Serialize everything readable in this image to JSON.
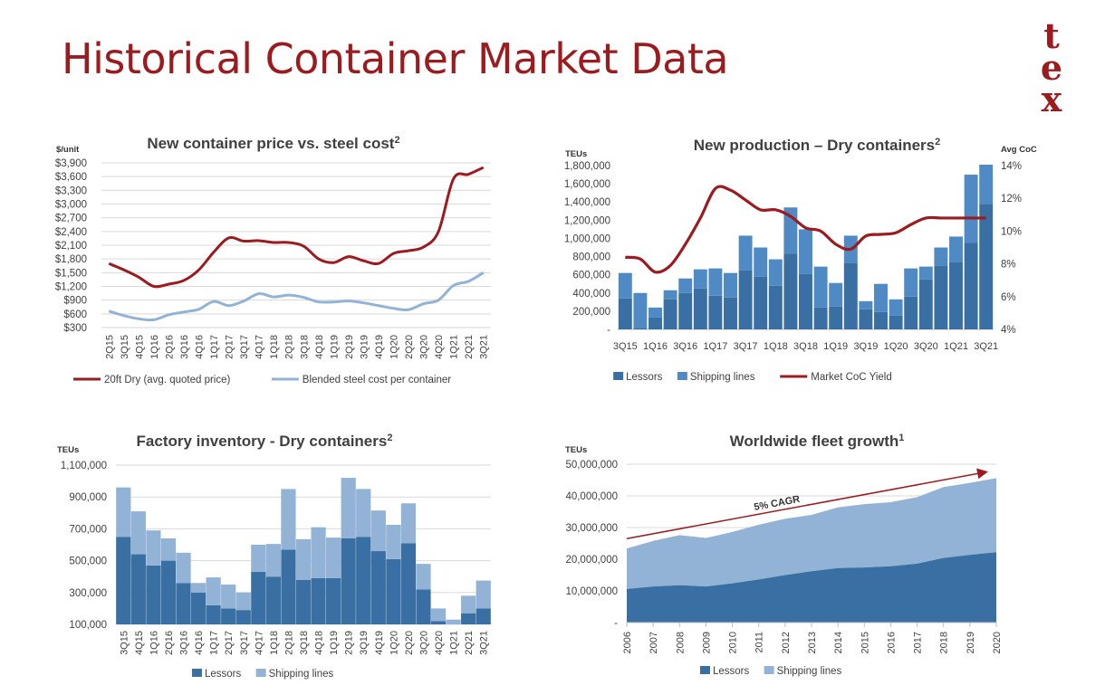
{
  "page": {
    "title": "Historical Container Market Data",
    "logo_letters": [
      "t",
      "e",
      "x"
    ],
    "colors": {
      "title": "#9b1b1f",
      "dark_blue": "#3a6fa3",
      "mid_blue": "#4f8ac4",
      "light_blue": "#93b3d6",
      "dark_red": "#9b1b1f"
    }
  },
  "chart_data": [
    {
      "id": "price",
      "type": "line",
      "title": "New container price vs. steel cost",
      "title_sup": "2",
      "ylabel": "$/unit",
      "ylim": [
        300,
        3900
      ],
      "yticks": [
        "$300",
        "$600",
        "$900",
        "$1,200",
        "$1,500",
        "$1,800",
        "$2,100",
        "$2,400",
        "$2,700",
        "$3,000",
        "$3,300",
        "$3,600",
        "$3,900"
      ],
      "categories": [
        "2Q15",
        "3Q15",
        "4Q15",
        "1Q16",
        "2Q16",
        "3Q16",
        "4Q16",
        "1Q17",
        "2Q17",
        "3Q17",
        "4Q17",
        "1Q18",
        "2Q18",
        "3Q18",
        "4Q18",
        "1Q19",
        "2Q19",
        "3Q19",
        "4Q19",
        "1Q20",
        "2Q20",
        "3Q20",
        "4Q20",
        "1Q21",
        "2Q21",
        "3Q21"
      ],
      "series": [
        {
          "name": "20ft Dry (avg. quoted price)",
          "color": "#9b1b1f",
          "values": [
            1700,
            1560,
            1400,
            1200,
            1250,
            1330,
            1560,
            1950,
            2260,
            2190,
            2200,
            2160,
            2160,
            2080,
            1800,
            1720,
            1850,
            1760,
            1700,
            1920,
            1980,
            2060,
            2400,
            3550,
            3650,
            3800
          ]
        },
        {
          "name": "Blended steel cost per container",
          "color": "#93b3d6",
          "values": [
            660,
            560,
            490,
            470,
            580,
            640,
            700,
            870,
            780,
            880,
            1040,
            970,
            1010,
            960,
            860,
            860,
            880,
            840,
            780,
            720,
            690,
            820,
            900,
            1220,
            1310,
            1500
          ]
        }
      ],
      "legend": "bottom",
      "grid": true
    },
    {
      "id": "production",
      "type": "bar",
      "stacked": true,
      "title": "New production – Dry containers",
      "title_sup": "2",
      "ylabel": "TEUs",
      "y2label": "Avg CoC",
      "ylim": [
        0,
        1800000
      ],
      "yticks": [
        "-",
        "200,000",
        "400,000",
        "600,000",
        "800,000",
        "1,000,000",
        "1,200,000",
        "1,400,000",
        "1,600,000",
        "1,800,000"
      ],
      "y2lim": [
        4,
        14
      ],
      "y2ticks": [
        "4%",
        "6%",
        "8%",
        "10%",
        "12%",
        "14%"
      ],
      "categories": [
        "3Q15",
        "4Q15",
        "1Q16",
        "2Q16",
        "3Q16",
        "4Q16",
        "1Q17",
        "2Q17",
        "3Q17",
        "4Q17",
        "1Q18",
        "2Q18",
        "3Q18",
        "4Q18",
        "1Q19",
        "2Q19",
        "3Q19",
        "4Q19",
        "1Q20",
        "2Q20",
        "3Q20",
        "4Q20",
        "1Q21",
        "2Q21",
        "3Q21"
      ],
      "xtick_labels": [
        "3Q15",
        "1Q16",
        "3Q16",
        "1Q17",
        "3Q17",
        "1Q18",
        "3Q18",
        "1Q19",
        "3Q19",
        "1Q20",
        "3Q20",
        "1Q21",
        "3Q21"
      ],
      "series": [
        {
          "name": "Lessors",
          "color": "#3a6fa3",
          "values": [
            340,
            10,
            130,
            330,
            400,
            450,
            370,
            350,
            650,
            580,
            480,
            830,
            610,
            240,
            250,
            730,
            220,
            190,
            150,
            360,
            550,
            700,
            740,
            950,
            1380
          ]
        },
        {
          "name": "Shipping lines",
          "color": "#4f8ac4",
          "values": [
            280,
            390,
            110,
            100,
            160,
            210,
            300,
            270,
            380,
            320,
            290,
            510,
            490,
            450,
            260,
            300,
            90,
            310,
            180,
            310,
            140,
            200,
            280,
            750,
            430
          ]
        }
      ],
      "series_units": "thousand TEUs",
      "line_series": {
        "name": "Market CoC Yield",
        "color": "#9b1b1f",
        "axis": "y2",
        "values": [
          8.4,
          8.3,
          7.5,
          7.9,
          9.2,
          10.8,
          12.6,
          12.5,
          11.9,
          11.3,
          11.3,
          10.9,
          10.2,
          10.0,
          9.2,
          8.9,
          9.7,
          9.8,
          9.9,
          10.4,
          10.8,
          10.8,
          10.8,
          10.8,
          10.8
        ]
      },
      "legend": "bottom",
      "grid": false
    },
    {
      "id": "inventory",
      "type": "bar",
      "stacked": true,
      "title": "Factory inventory - Dry containers",
      "title_sup": "2",
      "ylabel": "TEUs",
      "ylim": [
        100000,
        1100000
      ],
      "yticks": [
        "100,000",
        "300,000",
        "500,000",
        "700,000",
        "900,000",
        "1,100,000"
      ],
      "categories": [
        "3Q15",
        "4Q15",
        "1Q16",
        "2Q16",
        "3Q16",
        "4Q16",
        "1Q17",
        "2Q17",
        "3Q17",
        "4Q17",
        "1Q18",
        "2Q18",
        "3Q18",
        "4Q18",
        "1Q19",
        "2Q19",
        "3Q19",
        "4Q19",
        "1Q20",
        "2Q20",
        "3Q20",
        "4Q20",
        "1Q21",
        "2Q21",
        "3Q21"
      ],
      "series": [
        {
          "name": "Lessors",
          "color": "#3a6fa3",
          "values": [
            650,
            540,
            470,
            500,
            360,
            300,
            220,
            200,
            190,
            430,
            400,
            570,
            380,
            390,
            390,
            640,
            650,
            560,
            510,
            610,
            320,
            120,
            100,
            170,
            200
          ]
        },
        {
          "name": "Shipping lines",
          "color": "#93b3d6",
          "values": [
            310,
            270,
            220,
            140,
            190,
            60,
            175,
            150,
            110,
            170,
            205,
            380,
            255,
            320,
            255,
            380,
            300,
            255,
            215,
            250,
            160,
            80,
            30,
            110,
            175
          ]
        }
      ],
      "series_units": "thousand TEUs",
      "legend": "bottom",
      "grid": true
    },
    {
      "id": "fleet",
      "type": "area",
      "stacked": true,
      "title": "Worldwide fleet growth",
      "title_sup": "1",
      "ylabel": "TEUs",
      "ylim": [
        0,
        50000000
      ],
      "yticks": [
        "-",
        "10,000,000",
        "20,000,000",
        "30,000,000",
        "40,000,000",
        "50,000,000"
      ],
      "x": [
        "2006",
        "2007",
        "2008",
        "2009",
        "2010",
        "2011",
        "2012",
        "2013",
        "2014",
        "2015",
        "2016",
        "2017",
        "2018",
        "2019",
        "2020"
      ],
      "series": [
        {
          "name": "Lessors",
          "color": "#3a6fa3",
          "values": [
            10.6,
            11.4,
            11.8,
            11.4,
            12.4,
            13.6,
            15.0,
            16.2,
            17.2,
            17.4,
            17.8,
            18.6,
            20.4,
            21.4,
            22.2
          ]
        },
        {
          "name": "Shipping lines",
          "color": "#93b3d6",
          "values": [
            12.8,
            14.4,
            15.8,
            15.3,
            16.2,
            17.3,
            17.8,
            17.8,
            19.2,
            20.0,
            20.2,
            21.0,
            22.4,
            22.7,
            23.4
          ]
        }
      ],
      "series_units": "million TEUs",
      "annotation": "5% CAGR",
      "legend": "bottom",
      "grid": true
    }
  ]
}
